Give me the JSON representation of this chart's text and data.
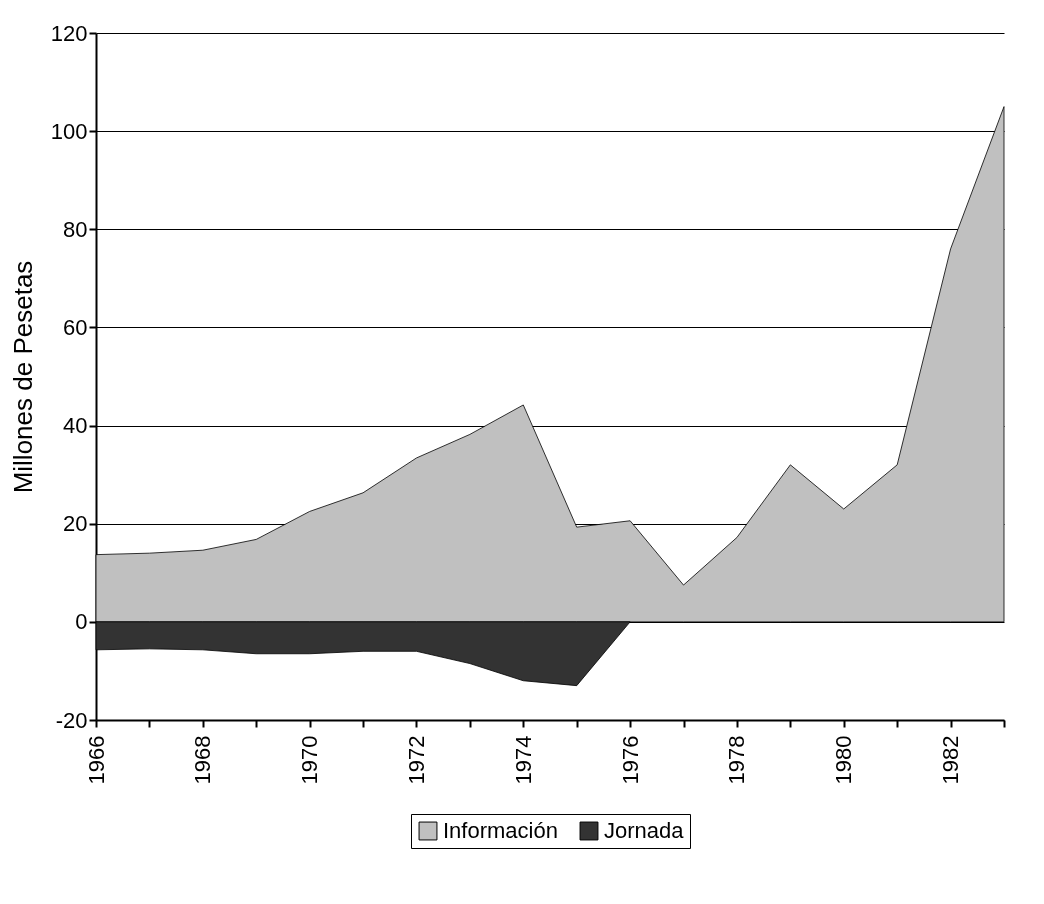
{
  "chart_data": {
    "type": "area",
    "ylabel": "Millones de Pesetas",
    "x": [
      1966,
      1967,
      1968,
      1969,
      1970,
      1971,
      1972,
      1973,
      1974,
      1975,
      1976,
      1977,
      1978,
      1979,
      1980,
      1981,
      1982,
      1983
    ],
    "series": [
      {
        "name": "Información",
        "color": "#c0c0c0",
        "values": [
          13.7,
          14,
          14.6,
          16.8,
          22.5,
          26.3,
          33.4,
          38.2,
          44.2,
          19.3,
          20.6,
          7.5,
          17.2,
          32,
          23,
          32,
          76,
          105
        ]
      },
      {
        "name": "Jornada",
        "color": "#333333",
        "values": [
          -5.7,
          -5.5,
          -5.7,
          -6.5,
          -6.5,
          -6,
          -6,
          -8.5,
          -12,
          -13,
          0,
          null,
          null,
          null,
          null,
          null,
          null,
          null
        ]
      }
    ],
    "xlim": [
      1966,
      1983
    ],
    "xticks": [
      1966,
      {
        "value": 1967,
        "label": null
      },
      1968,
      {
        "value": 1969,
        "label": null
      },
      1970,
      {
        "value": 1971,
        "label": null
      },
      1972,
      {
        "value": 1973,
        "label": null
      },
      1974,
      {
        "value": 1975,
        "label": null
      },
      1976,
      {
        "value": 1977,
        "label": null
      },
      1978,
      {
        "value": 1979,
        "label": null
      },
      1980,
      {
        "value": 1981,
        "label": null
      },
      1982,
      {
        "value": 1983,
        "label": null
      }
    ],
    "ylim": [
      -20,
      120
    ],
    "yticks": [
      -20,
      0,
      20,
      40,
      60,
      80,
      100,
      120
    ],
    "grid": "y",
    "legend": "bottom"
  }
}
